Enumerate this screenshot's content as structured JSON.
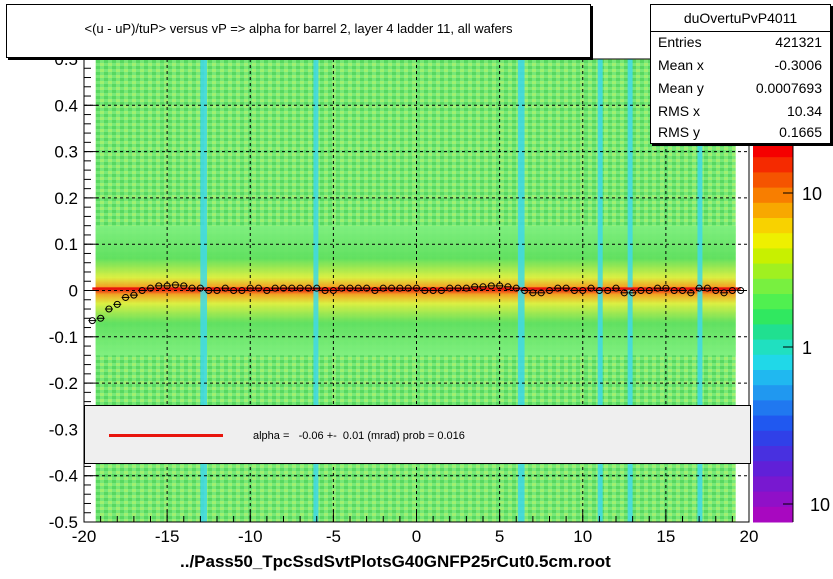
{
  "title": "<(u - uP)/tuP> versus   vP => alpha for barrel 2, layer 4 ladder 11, all wafers",
  "stats": {
    "name": "duOvertuPvP4011",
    "rows": [
      {
        "label": "Entries",
        "value": "421321"
      },
      {
        "label": "Mean x",
        "value": "-0.3006"
      },
      {
        "label": "Mean y",
        "value": "0.0007693"
      },
      {
        "label": "RMS x",
        "value": "10.34"
      },
      {
        "label": "RMS y",
        "value": "0.1665"
      }
    ]
  },
  "fit_legend": "alpha =   -0.06 +-  0.01 (mrad) prob = 0.016",
  "x_axis_title": "../Pass50_TpcSsdSvtPlotsG40GNFP25rCut0.5cm.root",
  "colors": {
    "fit_line": "#e8140c",
    "profile_marker": "#000000"
  },
  "chart_data": {
    "type": "heatmap",
    "xlim": [
      -20,
      20
    ],
    "ylim": [
      -0.5,
      0.5
    ],
    "x_ticks": [
      "-20",
      "-15",
      "-10",
      "-5",
      "0",
      "5",
      "10",
      "15",
      "20"
    ],
    "y_ticks": [
      "-0.5",
      "-0.4",
      "-0.3",
      "-0.2",
      "-0.1",
      "0",
      "0.1",
      "0.2",
      "0.3",
      "0.4",
      "0.5"
    ],
    "z_scale": "log",
    "z_ticks": [
      "10",
      "1",
      "10"
    ],
    "grid": true,
    "profile": {
      "x": [
        -19.5,
        -19,
        -18.5,
        -18,
        -17.5,
        -17,
        -16.5,
        -16,
        -15.5,
        -15,
        -14.5,
        -14,
        -13.5,
        -13,
        -12.5,
        -12,
        -11.5,
        -11,
        -10.5,
        -10,
        -9.5,
        -9,
        -8.5,
        -8,
        -7.5,
        -7,
        -6.5,
        -6,
        -5.5,
        -5,
        -4.5,
        -4,
        -3.5,
        -3,
        -2.5,
        -2,
        -1.5,
        -1,
        -0.5,
        0,
        0.5,
        1,
        1.5,
        2,
        2.5,
        3,
        3.5,
        4,
        4.5,
        5,
        5.5,
        6,
        6.5,
        7,
        7.5,
        8,
        8.5,
        9,
        9.5,
        10,
        10.5,
        11,
        11.5,
        12,
        12.5,
        13,
        13.5,
        14,
        14.5,
        15,
        15.5,
        16,
        16.5,
        17,
        17.5,
        18,
        18.5,
        19,
        19.5
      ],
      "y": [
        -0.065,
        -0.06,
        -0.04,
        -0.03,
        -0.015,
        -0.01,
        0.0,
        0.005,
        0.01,
        0.01,
        0.012,
        0.01,
        0.005,
        0.005,
        0.0,
        0.0,
        0.005,
        0.0,
        0.0,
        0.005,
        0.005,
        0.0,
        0.005,
        0.005,
        0.005,
        0.005,
        0.005,
        0.005,
        0.0,
        0.0,
        0.005,
        0.005,
        0.005,
        0.005,
        0.0,
        0.005,
        0.005,
        0.005,
        0.005,
        0.005,
        0.0,
        0.0,
        0.0,
        0.005,
        0.005,
        0.005,
        0.008,
        0.008,
        0.01,
        0.01,
        0.008,
        0.005,
        0.0,
        -0.005,
        -0.005,
        0.0,
        0.005,
        0.005,
        0.0,
        0.0,
        0.005,
        0.0,
        0.0,
        0.005,
        -0.005,
        -0.005,
        0.0,
        0.0,
        0.005,
        0.005,
        0.0,
        0.0,
        -0.005,
        0.005,
        0.005,
        0.0,
        -0.005,
        0.0,
        0.0
      ]
    },
    "fit": {
      "type": "constant",
      "y": 0.004,
      "x_range": [
        -19.5,
        19.5
      ]
    }
  }
}
